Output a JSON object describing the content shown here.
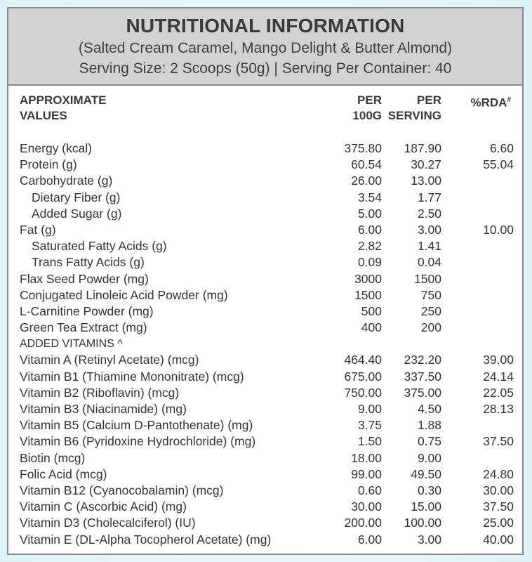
{
  "header": {
    "title": "NUTRITIONAL INFORMATION",
    "flavours": "(Salted Cream Caramel, Mango Delight & Butter Almond)",
    "serving": "Serving Size: 2 Scoops (50g) | Serving Per Container: 40"
  },
  "columns": {
    "name_l1": "APPROXIMATE",
    "name_l2": "VALUES",
    "per100_l1": "PER",
    "per100_l2": "100G",
    "serving_l1": "PER",
    "serving_l2": "SERVING",
    "rda": "%RDA",
    "rda_mark": "#"
  },
  "nutrients": [
    {
      "name": "Energy (kcal)",
      "per100": "375.80",
      "serving": "187.90",
      "rda": "6.60"
    },
    {
      "name": "Protein (g)",
      "per100": "60.54",
      "serving": "30.27",
      "rda": "55.04"
    },
    {
      "name": "Carbohydrate (g)",
      "per100": "26.00",
      "serving": "13.00",
      "rda": ""
    },
    {
      "name": "Dietary Fiber (g)",
      "per100": "3.54",
      "serving": "1.77",
      "rda": ""
    },
    {
      "name": "Added Sugar (g)",
      "per100": "5.00",
      "serving": "2.50",
      "rda": ""
    },
    {
      "name": "Fat (g)",
      "per100": "6.00",
      "serving": "3.00",
      "rda": "10.00"
    },
    {
      "name": "Saturated Fatty Acids (g)",
      "per100": "2.82",
      "serving": "1.41",
      "rda": ""
    },
    {
      "name": "Trans Fatty Acids (g)",
      "per100": "0.09",
      "serving": "0.04",
      "rda": ""
    },
    {
      "name": "Flax Seed Powder (mg)",
      "per100": "3000",
      "serving": "1500",
      "rda": ""
    },
    {
      "name": "Conjugated Linoleic Acid Powder (mg)",
      "per100": "1500",
      "serving": "750",
      "rda": ""
    },
    {
      "name": "L-Carnitine Powder (mg)",
      "per100": "500",
      "serving": "250",
      "rda": ""
    },
    {
      "name": "Green Tea Extract (mg)",
      "per100": "400",
      "serving": "200",
      "rda": ""
    }
  ],
  "vitamins_heading": "ADDED VITAMINS ^",
  "vitamins": [
    {
      "name": "Vitamin A (Retinyl Acetate) (mcg)",
      "per100": "464.40",
      "serving": "232.20",
      "rda": "39.00"
    },
    {
      "name": "Vitamin B1 (Thiamine Mononitrate) (mcg)",
      "per100": "675.00",
      "serving": "337.50",
      "rda": "24.14"
    },
    {
      "name": "Vitamin B2 (Riboflavin) (mcg)",
      "per100": "750.00",
      "serving": "375.00",
      "rda": "22.05"
    },
    {
      "name": "Vitamin B3 (Niacinamide) (mg)",
      "per100": "9.00",
      "serving": "4.50",
      "rda": "28.13"
    },
    {
      "name": "Vitamin B5 (Calcium D-Pantothenate) (mg)",
      "per100": "3.75",
      "serving": "1.88",
      "rda": ""
    },
    {
      "name": "Vitamin B6 (Pyridoxine Hydrochloride) (mg)",
      "per100": "1.50",
      "serving": "0.75",
      "rda": "37.50"
    },
    {
      "name": "Biotin (mcg)",
      "per100": "18.00",
      "serving": "9.00",
      "rda": ""
    },
    {
      "name": "Folic Acid (mcg)",
      "per100": "99.00",
      "serving": "49.50",
      "rda": "24.80"
    },
    {
      "name": "Vitamin B12 (Cyanocobalamin) (mcg)",
      "per100": "0.60",
      "serving": "0.30",
      "rda": "30.00"
    },
    {
      "name": "Vitamin C (Ascorbic Acid) (mg)",
      "per100": "30.00",
      "serving": "15.00",
      "rda": "37.50"
    },
    {
      "name": "Vitamin D3 (Cholecalciferol) (IU)",
      "per100": "200.00",
      "serving": "100.00",
      "rda": "25.00"
    },
    {
      "name": "Vitamin E (DL-Alpha Tocopherol Acetate) (mg)",
      "per100": "6.00",
      "serving": "3.00",
      "rda": "40.00"
    }
  ]
}
